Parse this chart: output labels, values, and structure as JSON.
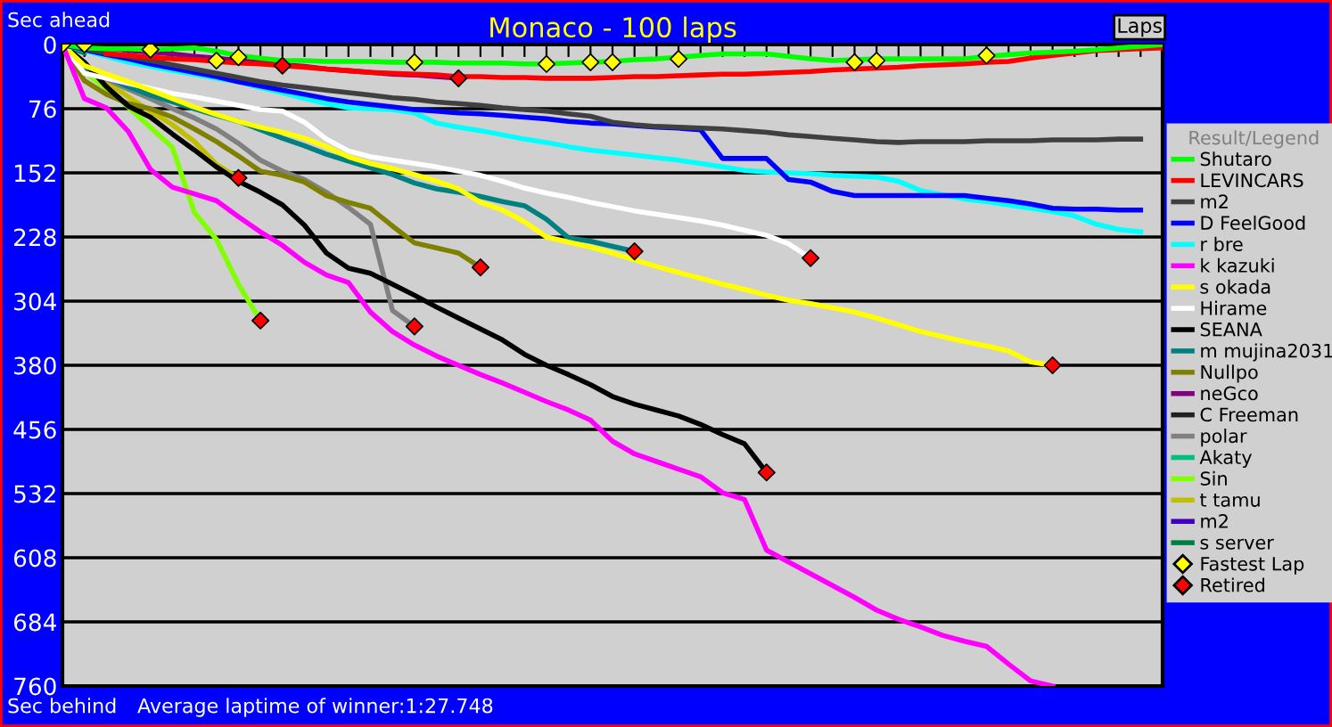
{
  "chart_data": {
    "type": "line",
    "title": "Monaco - 100 laps",
    "xlabel": "Laps",
    "legend_title": "Result/Legend",
    "annotations": [
      "Sec ahead",
      "Sec behind",
      "Average laptime of winner:1:27.748"
    ],
    "categories": [
      null,
      null,
      null,
      null,
      null,
      null,
      null,
      null,
      null,
      null,
      null,
      null,
      null,
      null,
      null,
      null,
      null,
      null,
      null,
      null,
      null,
      null,
      null,
      null,
      null,
      null,
      null,
      null,
      null,
      null,
      null,
      null,
      null,
      null,
      null,
      null,
      null,
      null,
      null,
      null,
      null,
      null,
      null,
      null,
      null,
      null,
      null,
      null,
      null,
      null,
      null
    ],
    "ylim": [
      760,
      0
    ],
    "yticks": [
      0,
      76,
      152,
      228,
      304,
      380,
      456,
      532,
      608,
      684,
      760
    ],
    "grid": "y",
    "legend": "right",
    "tick_labels": "y",
    "series": [
      {
        "name": "Shutaro",
        "color": "#00ff00",
        "values": [
          0,
          4,
          5,
          5,
          6,
          5,
          4,
          8,
          13,
          16,
          19,
          19,
          20,
          20,
          20,
          21,
          21,
          21,
          22,
          22,
          22,
          23,
          23,
          22,
          21,
          20,
          18,
          17,
          15,
          13,
          11,
          11,
          11,
          14,
          17,
          19,
          18,
          17,
          17,
          17,
          17,
          17,
          14,
          12,
          10,
          9,
          8,
          6,
          4,
          2,
          0
        ]
      },
      {
        "name": "LEVINCARS",
        "color": "#ff0000",
        "values": [
          null,
          null,
          11,
          13,
          15,
          17,
          18,
          20,
          22,
          23,
          25,
          27,
          29,
          31,
          33,
          34,
          35,
          36,
          38,
          38,
          39,
          39,
          40,
          40,
          40,
          39,
          38,
          38,
          37,
          36,
          35,
          35,
          34,
          33,
          32,
          30,
          29,
          28,
          27,
          25,
          24,
          23,
          21,
          20,
          16,
          13,
          10,
          7,
          6,
          5,
          4
        ]
      },
      {
        "name": "m2",
        "color": "#404040",
        "values": [
          0,
          5,
          10,
          14,
          19,
          24,
          29,
          34,
          39,
          44,
          48,
          51,
          54,
          57,
          60,
          63,
          65,
          68,
          70,
          72,
          75,
          77,
          79,
          82,
          85,
          92,
          95,
          97,
          98,
          99,
          100,
          102,
          104,
          107,
          109,
          111,
          113,
          115,
          116,
          115,
          115,
          115,
          114,
          114,
          114,
          113,
          113,
          113,
          112,
          112,
          null
        ]
      },
      {
        "name": "D FeelGood",
        "color": "#0000ff",
        "values": [
          0,
          6,
          12,
          17,
          23,
          28,
          33,
          38,
          44,
          49,
          54,
          59,
          64,
          68,
          71,
          74,
          77,
          79,
          81,
          82,
          84,
          86,
          88,
          91,
          93,
          94,
          96,
          98,
          99,
          101,
          135,
          135,
          135,
          160,
          163,
          174,
          179,
          179,
          179,
          179,
          179,
          179,
          182,
          185,
          189,
          194,
          195,
          195,
          196,
          196,
          null
        ]
      },
      {
        "name": "r bre",
        "color": "#00ffff",
        "values": [
          0,
          7,
          14,
          21,
          26,
          31,
          35,
          40,
          44,
          51,
          57,
          64,
          70,
          75,
          76,
          77,
          81,
          93,
          98,
          102,
          107,
          112,
          116,
          121,
          125,
          128,
          131,
          134,
          137,
          141,
          145,
          149,
          151,
          152,
          153,
          155,
          156,
          157,
          162,
          173,
          178,
          183,
          186,
          190,
          194,
          198,
          203,
          213,
          219,
          222,
          null
        ]
      },
      {
        "name": "k kazuki",
        "color": "#ff00ff",
        "values": [
          0,
          64,
          75,
          103,
          148,
          169,
          177,
          185,
          204,
          222,
          238,
          258,
          273,
          282,
          317,
          340,
          356,
          369,
          380,
          391,
          401,
          412,
          423,
          433,
          445,
          470,
          485,
          494,
          503,
          512,
          531,
          539,
          599,
          613,
          627,
          641,
          655,
          670,
          681,
          690,
          700,
          707,
          713,
          734,
          754,
          760,
          null,
          null,
          null,
          null,
          null
        ]
      },
      {
        "name": "s okada",
        "color": "#ffff00",
        "values": [
          0,
          25,
          35,
          44,
          54,
          64,
          74,
          83,
          91,
          98,
          104,
          111,
          121,
          133,
          141,
          147,
          154,
          162,
          171,
          187,
          196,
          210,
          228,
          234,
          240,
          247,
          255,
          263,
          270,
          277,
          284,
          290,
          297,
          303,
          307,
          312,
          317,
          324,
          332,
          340,
          346,
          352,
          357,
          363,
          376,
          380,
          null,
          null,
          null,
          null,
          null
        ]
      },
      {
        "name": "Hirame",
        "color": "#ffffff",
        "values": [
          0,
          34,
          40,
          46,
          52,
          58,
          62,
          67,
          72,
          77,
          79,
          92,
          112,
          126,
          133,
          137,
          141,
          145,
          150,
          155,
          162,
          170,
          176,
          181,
          187,
          192,
          197,
          201,
          205,
          209,
          214,
          220,
          226,
          236,
          253,
          null,
          null,
          null,
          null,
          null,
          null,
          null,
          null,
          null,
          null,
          null,
          null,
          null,
          null,
          null,
          null
        ]
      },
      {
        "name": "SEANA",
        "color": "#000000",
        "values": [
          0,
          21,
          50,
          73,
          86,
          106,
          125,
          145,
          162,
          175,
          190,
          214,
          247,
          265,
          271,
          284,
          297,
          311,
          324,
          337,
          350,
          367,
          380,
          391,
          403,
          417,
          426,
          433,
          440,
          450,
          462,
          473,
          507,
          null,
          null,
          null,
          null,
          null,
          null,
          null,
          null,
          null,
          null,
          null,
          null,
          null,
          null,
          null,
          null,
          null,
          null
        ]
      },
      {
        "name": "m mujina2031",
        "color": "#008080",
        "values": [
          0,
          27,
          38,
          50,
          60,
          68,
          76,
          84,
          91,
          101,
          111,
          120,
          130,
          138,
          146,
          154,
          164,
          171,
          175,
          180,
          186,
          191,
          207,
          229,
          233,
          239,
          245,
          null,
          null,
          null,
          null,
          null,
          null,
          null,
          null,
          null,
          null,
          null,
          null,
          null,
          null,
          null,
          null,
          null,
          null,
          null,
          null,
          null,
          null,
          null,
          null
        ]
      },
      {
        "name": "Nullpo",
        "color": "#808000",
        "values": [
          0,
          43,
          59,
          70,
          76,
          86,
          100,
          115,
          132,
          150,
          155,
          163,
          179,
          187,
          194,
          215,
          235,
          241,
          247,
          264,
          null,
          null,
          null,
          null,
          null,
          null,
          null,
          null,
          null,
          null,
          null,
          null,
          null,
          null,
          null,
          null,
          null,
          null,
          null,
          null,
          null,
          null,
          null,
          null,
          null,
          null,
          null,
          null,
          null,
          null,
          null
        ]
      },
      {
        "name": "neGco",
        "color": "#800080",
        "values": [
          0,
          2,
          4,
          7,
          9,
          11,
          14,
          16,
          19,
          21,
          24,
          26,
          29,
          31,
          33,
          35,
          36,
          38,
          40,
          null,
          null,
          null,
          null,
          null,
          null,
          null,
          null,
          null,
          null,
          null,
          null,
          null,
          null,
          null,
          null,
          null,
          null,
          null,
          null,
          null,
          null,
          null,
          null,
          null,
          null,
          null,
          null,
          null,
          null,
          null,
          null
        ]
      },
      {
        "name": "C Freeman",
        "color": "#202020",
        "values": [
          null,
          null,
          null,
          null,
          null,
          null,
          null,
          null,
          null,
          null,
          null,
          null,
          null,
          null,
          null,
          null,
          null,
          null,
          null,
          null,
          null,
          null,
          null,
          null,
          null,
          null,
          null,
          null,
          null,
          null,
          null,
          null,
          null,
          null,
          null,
          null,
          null,
          null,
          null,
          null,
          null,
          null,
          null,
          null,
          null,
          null,
          null,
          null,
          null,
          null,
          null
        ]
      },
      {
        "name": "polar",
        "color": "#808080",
        "values": [
          0,
          27,
          41,
          53,
          64,
          76,
          87,
          100,
          117,
          137,
          150,
          160,
          175,
          193,
          213,
          315,
          334,
          null,
          null,
          null,
          null,
          null,
          null,
          null,
          null,
          null,
          null,
          null,
          null,
          null,
          null,
          null,
          null,
          null,
          null,
          null,
          null,
          null,
          null,
          null,
          null,
          null,
          null,
          null,
          null,
          null,
          null,
          null,
          null,
          null,
          null
        ]
      },
      {
        "name": "Akaty",
        "color": "#00c080",
        "values": [
          null,
          null,
          null,
          null,
          null,
          null,
          null,
          null,
          null,
          null,
          null,
          null,
          null,
          null,
          null,
          null,
          null,
          null,
          null,
          null,
          null,
          null,
          null,
          null,
          null,
          null,
          null,
          null,
          null,
          null,
          null,
          null,
          null,
          null,
          null,
          null,
          null,
          null,
          null,
          null,
          null,
          null,
          null,
          null,
          null,
          null,
          null,
          null,
          null,
          null,
          null
        ]
      },
      {
        "name": "Sin",
        "color": "#80ff00",
        "values": [
          0,
          32,
          52,
          74,
          98,
          122,
          199,
          231,
          284,
          327,
          null,
          null,
          null,
          null,
          null,
          null,
          null,
          null,
          null,
          null,
          null,
          null,
          null,
          null,
          null,
          null,
          null,
          null,
          null,
          null,
          null,
          null,
          null,
          null,
          null,
          null,
          null,
          null,
          null,
          null,
          null,
          null,
          null,
          null,
          null,
          null,
          null,
          null,
          null,
          null,
          null
        ]
      },
      {
        "name": "t tamu",
        "color": "#c0c000",
        "values": [
          0,
          30,
          44,
          62,
          79,
          95,
          115,
          142,
          158,
          null,
          null,
          null,
          null,
          null,
          null,
          null,
          null,
          null,
          null,
          null,
          null,
          null,
          null,
          null,
          null,
          null,
          null,
          null,
          null,
          null,
          null,
          null,
          null,
          null,
          null,
          null,
          null,
          null,
          null,
          null,
          null,
          null,
          null,
          null,
          null,
          null,
          null,
          null,
          null,
          null,
          null
        ]
      },
      {
        "name": "m2",
        "color": "#4000c0",
        "values": [
          null,
          null,
          null,
          null,
          null,
          null,
          null,
          null,
          null,
          null,
          null,
          null,
          null,
          null,
          null,
          null,
          null,
          null,
          null,
          null,
          null,
          null,
          null,
          null,
          null,
          null,
          null,
          null,
          null,
          null,
          null,
          null,
          null,
          null,
          null,
          null,
          null,
          null,
          null,
          null,
          null,
          null,
          null,
          null,
          null,
          null,
          null,
          null,
          null,
          null,
          null
        ]
      },
      {
        "name": "s server",
        "color": "#008040",
        "values": [
          0,
          10,
          null,
          null,
          null,
          null,
          null,
          null,
          null,
          null,
          null,
          null,
          null,
          null,
          null,
          null,
          null,
          null,
          null,
          null,
          null,
          null,
          null,
          null,
          null,
          null,
          null,
          null,
          null,
          null,
          null,
          null,
          null,
          null,
          null,
          null,
          null,
          null,
          null,
          null,
          null,
          null,
          null,
          null,
          null,
          null,
          null,
          null,
          null,
          null,
          null
        ]
      },
      {
        "name": "Fastest Lap",
        "type": "scatter",
        "marker": "diamond",
        "color": "#ffff00",
        "values": [
          0,
          0,
          null,
          null,
          6,
          null,
          null,
          19,
          15,
          null,
          null,
          null,
          null,
          null,
          null,
          null,
          21,
          null,
          null,
          null,
          null,
          null,
          23,
          null,
          21,
          21,
          null,
          null,
          17,
          null,
          null,
          null,
          null,
          null,
          null,
          null,
          21,
          19,
          null,
          null,
          null,
          null,
          13,
          null,
          null,
          null,
          null,
          null,
          null,
          null,
          null
        ]
      },
      {
        "name": "Retired",
        "type": "scatter",
        "marker": "diamond",
        "color": "#ff0000",
        "values": [
          null,
          null,
          null,
          null,
          null,
          null,
          null,
          null,
          158,
          327,
          25,
          null,
          null,
          null,
          null,
          null,
          334,
          null,
          40,
          264,
          null,
          null,
          null,
          null,
          null,
          null,
          245,
          null,
          null,
          null,
          null,
          null,
          507,
          null,
          253,
          null,
          null,
          null,
          null,
          null,
          null,
          null,
          null,
          null,
          null,
          380,
          null,
          null,
          null,
          null,
          null
        ]
      }
    ]
  }
}
